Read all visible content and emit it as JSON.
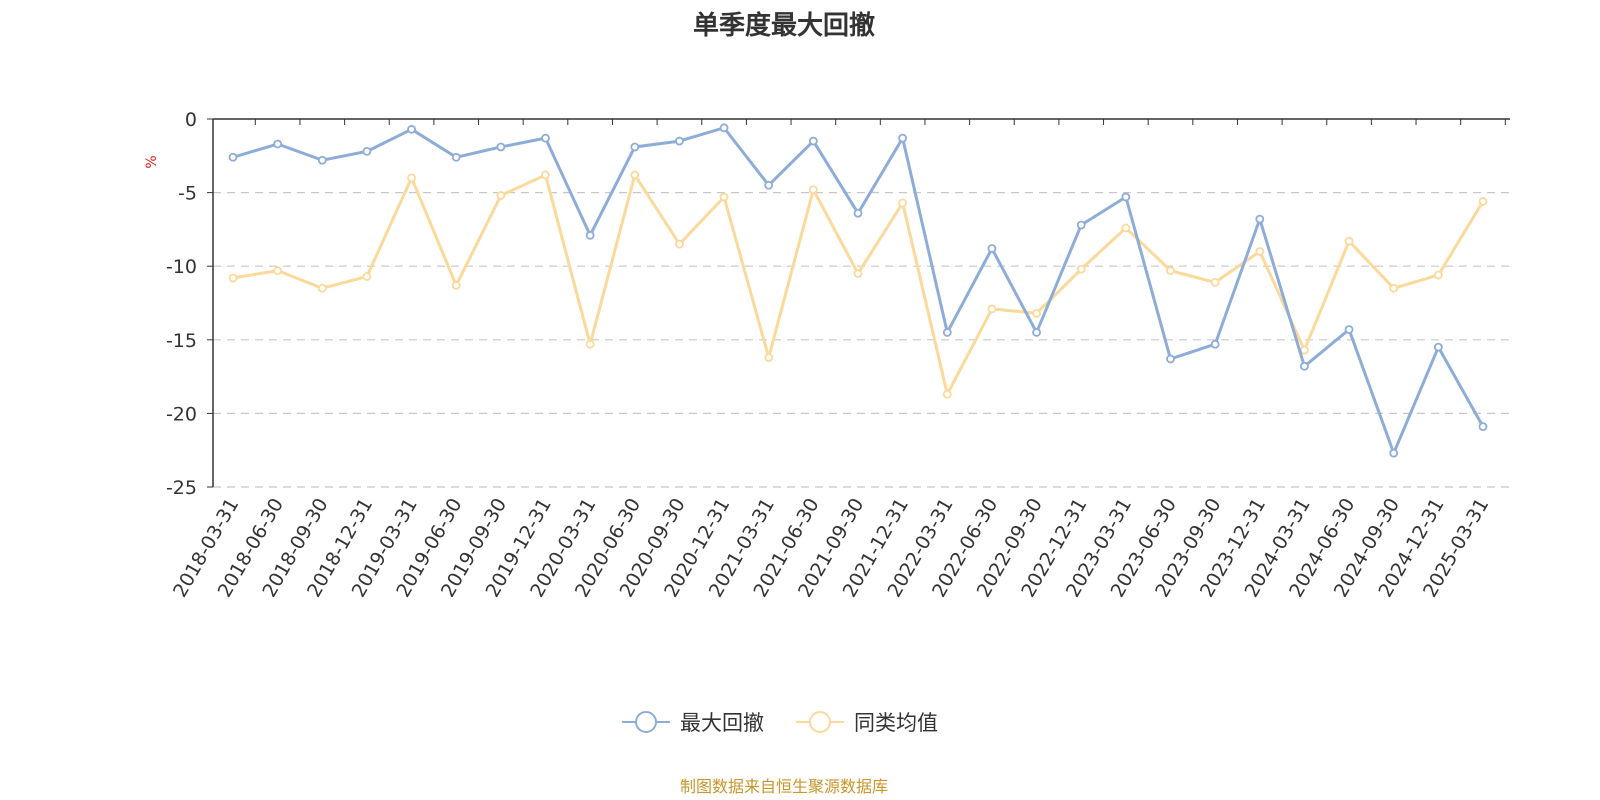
{
  "chart_data": {
    "type": "line",
    "title": "单季度最大回撤",
    "ylabel": "%",
    "ylim": [
      -25,
      0
    ],
    "yticks": [
      0,
      -5,
      -10,
      -15,
      -20,
      -25
    ],
    "grid": true,
    "legend_position": "bottom",
    "categories": [
      "2018-03-31",
      "2018-06-30",
      "2018-09-30",
      "2018-12-31",
      "2019-03-31",
      "2019-06-30",
      "2019-09-30",
      "2019-12-31",
      "2020-03-31",
      "2020-06-30",
      "2020-09-30",
      "2020-12-31",
      "2021-03-31",
      "2021-06-30",
      "2021-09-30",
      "2021-12-31",
      "2022-03-31",
      "2022-06-30",
      "2022-09-30",
      "2022-12-31",
      "2023-03-31",
      "2023-06-30",
      "2023-09-30",
      "2023-12-31",
      "2024-03-31",
      "2024-06-30",
      "2024-09-30",
      "2024-12-31",
      "2025-03-31"
    ],
    "series": [
      {
        "name": "最大回撤",
        "color": "#8eacd8",
        "values": [
          -2.6,
          -1.7,
          -2.8,
          -2.2,
          -0.7,
          -2.6,
          -1.9,
          -1.3,
          -7.9,
          -1.9,
          -1.5,
          -0.6,
          -4.5,
          -1.5,
          -6.4,
          -1.3,
          -14.5,
          -8.8,
          -14.5,
          -7.2,
          -5.3,
          -16.3,
          -15.3,
          -6.8,
          -16.8,
          -14.3,
          -22.7,
          -15.5,
          -20.9
        ]
      },
      {
        "name": "同类均值",
        "color": "#fbd99a",
        "values": [
          -10.8,
          -10.3,
          -11.5,
          -10.7,
          -4.0,
          -11.3,
          -5.2,
          -3.8,
          -15.3,
          -3.8,
          -8.5,
          -5.3,
          -16.2,
          -4.8,
          -10.5,
          -5.7,
          -18.7,
          -12.9,
          -13.2,
          -10.2,
          -7.4,
          -10.3,
          -11.1,
          -9.0,
          -15.7,
          -8.3,
          -11.5,
          -10.6,
          -5.6
        ]
      }
    ],
    "source": "制图数据来自恒生聚源数据库"
  }
}
